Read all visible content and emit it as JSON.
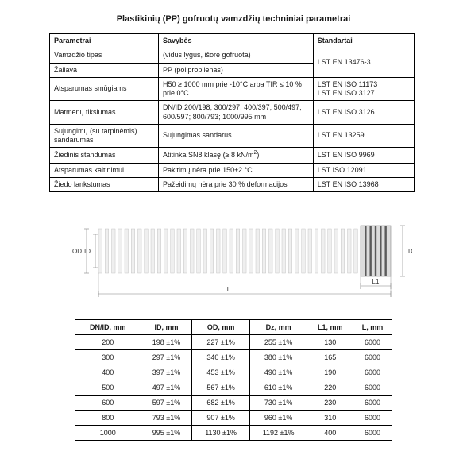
{
  "title": "Plastikinių (PP) gofruotų vamzdžių techniniai parametrai",
  "spec_table": {
    "headers": {
      "c1": "Parametrai",
      "c2": "Savybės",
      "c3": "Standartai"
    },
    "rows": [
      {
        "c1": "Vamzdžio tipas",
        "c2": "(vidus lygus, išorė gofruota)",
        "c3": "LST EN 13476-3",
        "merge_c3_down": true
      },
      {
        "c1": "Žaliava",
        "c2": "PP (polipropilenas)"
      },
      {
        "c1": "Atsparumas smūgiams",
        "c2": "H50 ≥ 1000 mm prie -10°C arba TIR ≤ 10 % prie 0°C",
        "c3": "LST EN ISO 11173\nLST EN ISO 3127"
      },
      {
        "c1": "Matmenų tikslumas",
        "c2": "DN/ID 200/198; 300/297; 400/397; 500/497; 600/597; 800/793; 1000/995 mm",
        "c3": "LST EN ISO 3126"
      },
      {
        "c1": "Sujungimų (su tarpinėmis) sandarumas",
        "c2": "Sujungimas sandarus",
        "c3": "LST EN 13259"
      },
      {
        "c1": "Žiedinis standumas",
        "c2": "Atitinka SN8 klasę (≥ 8 kN/m²)",
        "c3": "LST EN ISO 9969"
      },
      {
        "c1": "Atsparumas kaitinimui",
        "c2": "Pakitimų nėra prie 150±2 °C",
        "c3": "LST ISO 12091"
      },
      {
        "c1": "Žiedo lankstumas",
        "c2": "Pažeidimų nėra prie 30 % deformacijos",
        "c3": "LST EN ISO 13968"
      }
    ]
  },
  "diagram": {
    "labels": {
      "OD": "OD",
      "ID": "ID",
      "Dz": "Dz",
      "L": "L",
      "L1": "L1"
    },
    "rib_count": 40,
    "socket_bars": 5,
    "colors": {
      "rib_light": "#efefef",
      "rib_dark": "#b9b9b9",
      "socket_light": "#dcdcdc",
      "socket_dark": "#5a5a5a",
      "line": "#808080"
    }
  },
  "dim_table": {
    "headers": [
      "DN/ID, mm",
      "ID, mm",
      "OD, mm",
      "Dz, mm",
      "L1, mm",
      "L, mm"
    ],
    "rows": [
      [
        "200",
        "198 ±1%",
        "227 ±1%",
        "255 ±1%",
        "130",
        "6000"
      ],
      [
        "300",
        "297 ±1%",
        "340 ±1%",
        "380 ±1%",
        "165",
        "6000"
      ],
      [
        "400",
        "397 ±1%",
        "453 ±1%",
        "490 ±1%",
        "190",
        "6000"
      ],
      [
        "500",
        "497 ±1%",
        "567 ±1%",
        "610 ±1%",
        "220",
        "6000"
      ],
      [
        "600",
        "597 ±1%",
        "682 ±1%",
        "730 ±1%",
        "230",
        "6000"
      ],
      [
        "800",
        "793 ±1%",
        "907 ±1%",
        "960 ±1%",
        "310",
        "6000"
      ],
      [
        "1000",
        "995 ±1%",
        "1130 ±1%",
        "1192 ±1%",
        "400",
        "6000"
      ]
    ]
  }
}
